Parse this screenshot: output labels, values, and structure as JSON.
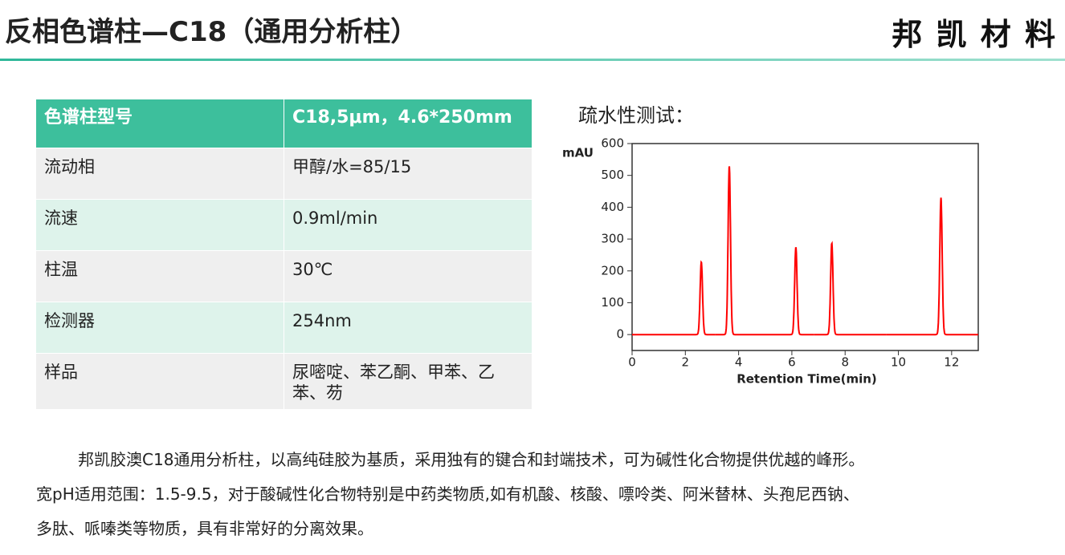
{
  "header": {
    "title": "反相色谱柱—C18（通用分析柱）",
    "logo": "邦 凯 材 料"
  },
  "table": {
    "rows": [
      [
        "色谱柱型号",
        "C18,5μm，4.6*250mm"
      ],
      [
        "流动相",
        "甲醇/水=85/15"
      ],
      [
        "流速",
        "0.9ml/min"
      ],
      [
        "柱温",
        "30℃"
      ],
      [
        "检测器",
        "254nm"
      ],
      [
        "样品",
        "尿嘧啶、苯乙酮、甲苯、乙苯、芴"
      ]
    ]
  },
  "chart_caption": "疏水性测试：",
  "chart_data": {
    "type": "line",
    "y_label": "mAU",
    "x_label": "Retention Time(min)",
    "color": "#ff0000",
    "x": [
      2.6,
      3.65,
      6.15,
      7.5,
      11.6
    ],
    "values": [
      228,
      530,
      275,
      287,
      430
    ],
    "xlim": [
      0,
      13
    ],
    "ylim": [
      -50,
      600
    ],
    "xticks": [
      0,
      2,
      4,
      6,
      8,
      10,
      12
    ],
    "yticks": [
      0,
      100,
      200,
      300,
      400,
      500,
      600
    ]
  },
  "paragraph": [
    "邦凯胶澳C18通用分析柱，以高纯硅胶为基质，采用独有的键合和封端技术，可为碱性化合物提供优越的峰形。",
    "宽pH适用范围：1.5-9.5，对于酸碱性化合物特别是中药类物质,如有机酸、核酸、嘌呤类、阿米替林、头孢尼西钠、",
    "多肽、哌嗪类等物质，具有非常好的分离效果。"
  ]
}
